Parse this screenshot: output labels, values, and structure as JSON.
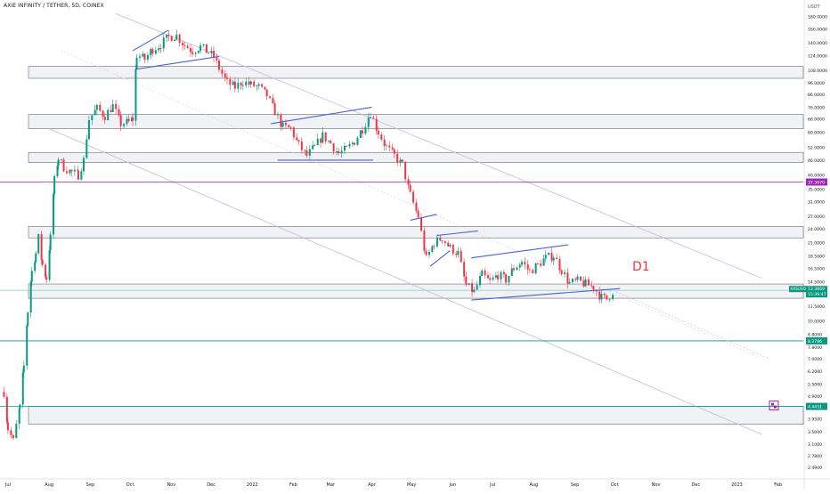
{
  "chart_title": "AXIE INFINITY / TETHER, 5D, COINEX",
  "currency_label": "USDT",
  "annotation_label": "D1",
  "chart_data": {
    "type": "candlestick",
    "title": "AXIE INFINITY / TETHER, 5D, COINEX",
    "y_scale": "log",
    "ylim": [
      2.35,
      190
    ],
    "y_ticks": [
      "180.0000",
      "160.0000",
      "140.0000",
      "124.0000",
      "108.0000",
      "96.0000",
      "86.0000",
      "76.0000",
      "68.0000",
      "60.0000",
      "52.0000",
      "46.0000",
      "40.0000",
      "35.0000",
      "31.0000",
      "27.0000",
      "24.0000",
      "21.0000",
      "18.5000",
      "16.5000",
      "14.5000",
      "11.5000",
      "10.0000",
      "8.8000",
      "7.8000",
      "7.0000",
      "6.2000",
      "5.5000",
      "4.9000",
      "3.9500",
      "3.5000",
      "3.1000",
      "2.7800",
      "2.4900"
    ],
    "x_ticks": [
      "Jul",
      "Aug",
      "Sep",
      "Oct",
      "Nov",
      "Dec",
      "2022",
      "Feb",
      "Mar",
      "Apr",
      "May",
      "Jun",
      "Jul",
      "Aug",
      "Sep",
      "Oct",
      "Nov",
      "Dec",
      "2023",
      "Feb"
    ],
    "x_range": [
      "2021-06-25",
      "2023-02-20"
    ],
    "last_price": {
      "value": "13.3669",
      "countdown": "15:36:47",
      "symbol": "AXSUSDT",
      "color": "#089981"
    },
    "price_labels": [
      {
        "value": "37.3670",
        "color": "#9c27b0"
      },
      {
        "value": "8.2786",
        "color": "#089981"
      },
      {
        "value": "4.4431",
        "color": "#089981"
      }
    ],
    "zones": [
      {
        "low": 100,
        "high": 112
      },
      {
        "low": 62,
        "high": 71
      },
      {
        "low": 45,
        "high": 49.5
      },
      {
        "low": 22,
        "high": 24.5
      },
      {
        "low": 12.4,
        "high": 14.2
      },
      {
        "low": 3.75,
        "high": 4.45
      }
    ],
    "hlines": [
      {
        "price": 37.367,
        "color": "#9c27b0"
      },
      {
        "price": 8.2786,
        "color": "#089981"
      },
      {
        "price": 4.4431,
        "color": "#089981"
      },
      {
        "price": 13.3669,
        "color": "#8fd6c6"
      }
    ],
    "channel_lines": [
      {
        "start": [
          "2021-09-20",
          185
        ],
        "end": [
          "2023-01-20",
          15
        ],
        "color": "#c7b9dd"
      },
      {
        "start": [
          "2021-08-10",
          130
        ],
        "end": [
          "2023-01-20",
          7
        ],
        "color": "#e0d6ec",
        "dotted": true
      },
      {
        "start": [
          "2021-08-01",
          62
        ],
        "end": [
          "2023-01-20",
          3.4
        ],
        "color": "#c7b9dd"
      }
    ],
    "pattern_lines": [
      {
        "start": [
          "2021-10-03",
          130
        ],
        "end": [
          "2021-10-30",
          158
        ]
      },
      {
        "start": [
          "2021-10-05",
          109
        ],
        "end": [
          "2021-12-07",
          123
        ]
      },
      {
        "start": [
          "2022-01-15",
          65
        ],
        "end": [
          "2022-04-01",
          76
        ]
      },
      {
        "start": [
          "2022-01-20",
          46
        ],
        "end": [
          "2022-04-02",
          46
        ]
      },
      {
        "start": [
          "2022-05-20",
          22.5
        ],
        "end": [
          "2022-06-20",
          23.5
        ]
      },
      {
        "start": [
          "2022-05-15",
          16.8
        ],
        "end": [
          "2022-05-30",
          19.5
        ]
      },
      {
        "start": [
          "2022-06-15",
          18.2
        ],
        "end": [
          "2022-08-27",
          20.6
        ]
      },
      {
        "start": [
          "2022-06-15",
          12.2
        ],
        "end": [
          "2022-10-05",
          13.6
        ]
      },
      {
        "start": [
          "2022-04-30",
          26
        ],
        "end": [
          "2022-05-20",
          27.5
        ]
      }
    ],
    "key_points": [
      {
        "date": "2021-06-28",
        "price": 5.1
      },
      {
        "date": "2021-07-01",
        "price": 3.6
      },
      {
        "date": "2021-07-05",
        "price": 3.2
      },
      {
        "date": "2021-07-10",
        "price": 4.4
      },
      {
        "date": "2021-07-13",
        "price": 6.5
      },
      {
        "date": "2021-07-16",
        "price": 11
      },
      {
        "date": "2021-07-19",
        "price": 16
      },
      {
        "date": "2021-07-22",
        "price": 19
      },
      {
        "date": "2021-07-24",
        "price": 22
      },
      {
        "date": "2021-07-27",
        "price": 17
      },
      {
        "date": "2021-07-30",
        "price": 15
      },
      {
        "date": "2021-08-02",
        "price": 22
      },
      {
        "date": "2021-08-05",
        "price": 38
      },
      {
        "date": "2021-08-08",
        "price": 47
      },
      {
        "date": "2021-08-12",
        "price": 43
      },
      {
        "date": "2021-08-18",
        "price": 41
      },
      {
        "date": "2021-08-23",
        "price": 40
      },
      {
        "date": "2021-08-27",
        "price": 46
      },
      {
        "date": "2021-08-31",
        "price": 68
      },
      {
        "date": "2021-09-06",
        "price": 75
      },
      {
        "date": "2021-09-12",
        "price": 70
      },
      {
        "date": "2021-09-18",
        "price": 77
      },
      {
        "date": "2021-09-24",
        "price": 65
      },
      {
        "date": "2021-09-30",
        "price": 66
      },
      {
        "date": "2021-10-03",
        "price": 68
      },
      {
        "date": "2021-10-06",
        "price": 125
      },
      {
        "date": "2021-10-12",
        "price": 120
      },
      {
        "date": "2021-10-18",
        "price": 132
      },
      {
        "date": "2021-10-24",
        "price": 138
      },
      {
        "date": "2021-10-30",
        "price": 148
      },
      {
        "date": "2021-11-05",
        "price": 150
      },
      {
        "date": "2021-11-11",
        "price": 137
      },
      {
        "date": "2021-11-17",
        "price": 130
      },
      {
        "date": "2021-11-23",
        "price": 135
      },
      {
        "date": "2021-11-29",
        "price": 128
      },
      {
        "date": "2021-12-03",
        "price": 123
      },
      {
        "date": "2021-12-07",
        "price": 110
      },
      {
        "date": "2021-12-13",
        "price": 96
      },
      {
        "date": "2021-12-19",
        "price": 92
      },
      {
        "date": "2021-12-25",
        "price": 97
      },
      {
        "date": "2021-12-31",
        "price": 94
      },
      {
        "date": "2022-01-06",
        "price": 92
      },
      {
        "date": "2022-01-12",
        "price": 85
      },
      {
        "date": "2022-01-18",
        "price": 73
      },
      {
        "date": "2022-01-24",
        "price": 63
      },
      {
        "date": "2022-01-30",
        "price": 62
      },
      {
        "date": "2022-02-05",
        "price": 53
      },
      {
        "date": "2022-02-11",
        "price": 48
      },
      {
        "date": "2022-02-17",
        "price": 52
      },
      {
        "date": "2022-02-23",
        "price": 58
      },
      {
        "date": "2022-03-01",
        "price": 54
      },
      {
        "date": "2022-03-07",
        "price": 49
      },
      {
        "date": "2022-03-13",
        "price": 51
      },
      {
        "date": "2022-03-19",
        "price": 55
      },
      {
        "date": "2022-03-25",
        "price": 62
      },
      {
        "date": "2022-03-31",
        "price": 72
      },
      {
        "date": "2022-04-06",
        "price": 60
      },
      {
        "date": "2022-04-12",
        "price": 52
      },
      {
        "date": "2022-04-18",
        "price": 48
      },
      {
        "date": "2022-04-24",
        "price": 44
      },
      {
        "date": "2022-04-30",
        "price": 33
      },
      {
        "date": "2022-05-06",
        "price": 27
      },
      {
        "date": "2022-05-12",
        "price": 18
      },
      {
        "date": "2022-05-18",
        "price": 21
      },
      {
        "date": "2022-05-24",
        "price": 22
      },
      {
        "date": "2022-05-30",
        "price": 20
      },
      {
        "date": "2022-06-05",
        "price": 19
      },
      {
        "date": "2022-06-11",
        "price": 14
      },
      {
        "date": "2022-06-17",
        "price": 13.2
      },
      {
        "date": "2022-06-23",
        "price": 15.5
      },
      {
        "date": "2022-06-29",
        "price": 14.5
      },
      {
        "date": "2022-07-05",
        "price": 15.5
      },
      {
        "date": "2022-07-11",
        "price": 14.8
      },
      {
        "date": "2022-07-17",
        "price": 16.5
      },
      {
        "date": "2022-07-23",
        "price": 17.5
      },
      {
        "date": "2022-07-29",
        "price": 16
      },
      {
        "date": "2022-08-04",
        "price": 17
      },
      {
        "date": "2022-08-10",
        "price": 18.2
      },
      {
        "date": "2022-08-16",
        "price": 18.6
      },
      {
        "date": "2022-08-22",
        "price": 16.2
      },
      {
        "date": "2022-08-28",
        "price": 14.3
      },
      {
        "date": "2022-09-03",
        "price": 14.6
      },
      {
        "date": "2022-09-09",
        "price": 14.2
      },
      {
        "date": "2022-09-15",
        "price": 13.8
      },
      {
        "date": "2022-09-21",
        "price": 12.5
      },
      {
        "date": "2022-09-25",
        "price": 12.3
      },
      {
        "date": "2022-09-30",
        "price": 13.37
      }
    ]
  }
}
